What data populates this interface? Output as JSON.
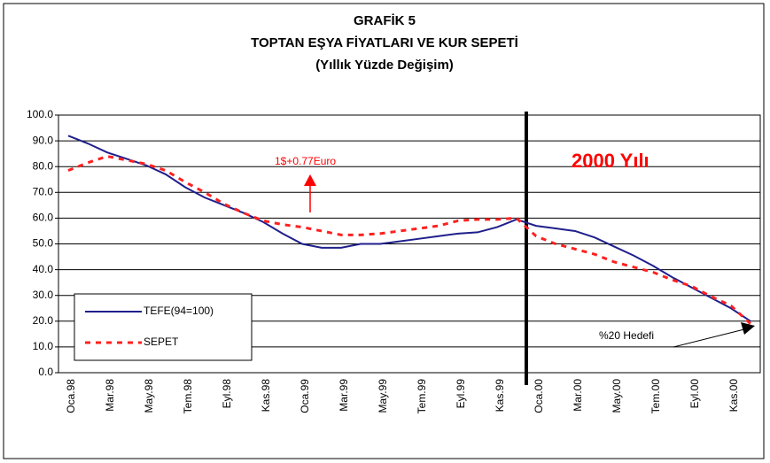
{
  "chart_data": {
    "type": "line",
    "title": [
      "GRAFİK 5",
      "TOPTAN EŞYA FİYATLARI VE KUR SEPETİ",
      "(Yıllık Yüzde Değişim)"
    ],
    "categories": [
      "Oca.98",
      null,
      "Mar.98",
      null,
      "May.98",
      null,
      "Tem.98",
      null,
      "Eyl.98",
      null,
      "Kas.98",
      null,
      "Oca.99",
      null,
      "Mar.99",
      null,
      "May.99",
      null,
      "Tem.99",
      null,
      "Eyl.99",
      null,
      "Kas.99",
      null,
      "Oca.00",
      null,
      "Mar.00",
      null,
      "May.00",
      null,
      "Tem.00",
      null,
      "Eyl.00",
      null,
      "Kas.00",
      null
    ],
    "series": [
      {
        "name": "TEFE(94=100)",
        "color": "#1f1f8c",
        "dash": false,
        "values": [
          92,
          89,
          85.5,
          83,
          80.5,
          77,
          72,
          68,
          65,
          62,
          58.5,
          54,
          50,
          48.5,
          48.5,
          50,
          50,
          51,
          52,
          53,
          54,
          54.5,
          56.5,
          59.5,
          57,
          56,
          55,
          52.5,
          49,
          45.5,
          41.5,
          37,
          33,
          29,
          25,
          20
        ]
      },
      {
        "name": "SEPET",
        "color": "#ff2020",
        "dash": true,
        "values": [
          78.5,
          81.5,
          84,
          82.5,
          81,
          78.5,
          74,
          70,
          65.5,
          62,
          59,
          57.5,
          56.5,
          55,
          53.5,
          53.5,
          54,
          55,
          56,
          57,
          59,
          59.5,
          59.5,
          60,
          53,
          50,
          48,
          46,
          43,
          41,
          39,
          36,
          33.5,
          29.5,
          26,
          19
        ]
      }
    ],
    "ylim": [
      0,
      100
    ],
    "yticks": [
      {
        "value": 0,
        "label": "0.0"
      },
      {
        "value": 10,
        "label": "10.0"
      },
      {
        "value": 20,
        "label": "20.0"
      },
      {
        "value": 30,
        "label": "30.0"
      },
      {
        "value": 40,
        "label": "40.0"
      },
      {
        "value": 50,
        "label": "50.0"
      },
      {
        "value": 60,
        "label": "60.0"
      },
      {
        "value": 70,
        "label": "70.0"
      },
      {
        "value": 80,
        "label": "80.0"
      },
      {
        "value": 90,
        "label": "90.0"
      },
      {
        "value": 100,
        "label": "100.0"
      }
    ],
    "grid": true,
    "legend": "lower left",
    "annotations": [
      "1$+0.77Euro",
      "2000 Yılı",
      "%20 Hedefi"
    ]
  }
}
